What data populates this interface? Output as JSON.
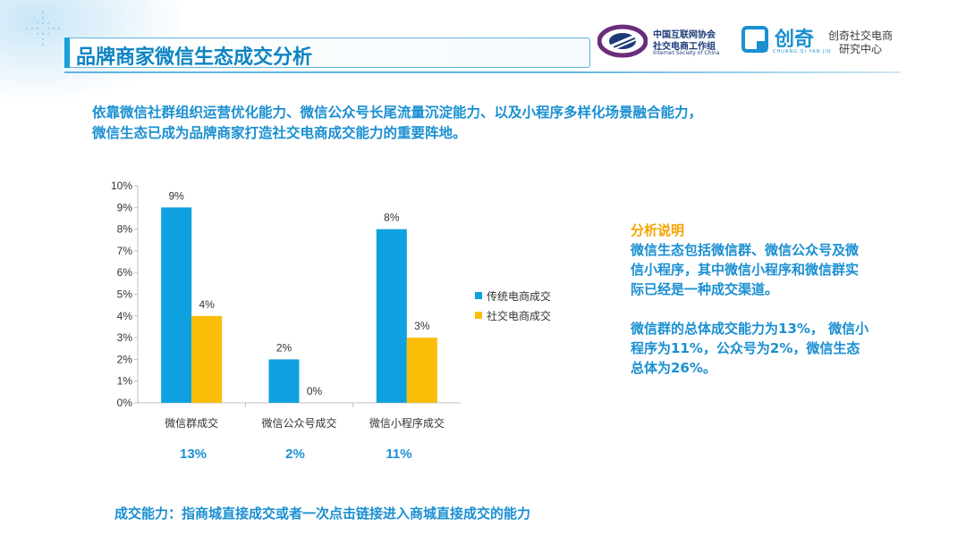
{
  "header": {
    "title": "品牌商家微信生态成交分析",
    "logo_isc": {
      "line1": "中国互联网协会",
      "line2": "社交电商工作组",
      "en": "Internet Society of China"
    },
    "logo_cq": {
      "brand": "创奇",
      "sub": "CHUANG QI YAN JIU",
      "line1": "创奇社交电商",
      "line2": "研究中心"
    }
  },
  "intro": {
    "line1": "依靠微信社群组织运营优化能力、微信公众号长尾流量沉淀能力、以及小程序多样化场景融合能力，",
    "line2": "微信生态已成为品牌商家打造社交电商成交能力的重要阵地。"
  },
  "chart_data": {
    "type": "bar",
    "categories": [
      "微信群成交",
      "微信公众号成交",
      "微信小程序成交"
    ],
    "series": [
      {
        "name": "传统电商成交",
        "values": [
          9,
          2,
          8
        ],
        "color": "#0fa0df"
      },
      {
        "name": "社交电商成交",
        "values": [
          4,
          0,
          3
        ],
        "color": "#fbbd08"
      }
    ],
    "data_labels": [
      [
        "9%",
        "2%",
        "8%"
      ],
      [
        "4%",
        "0%",
        "3%"
      ]
    ],
    "y_ticks": [
      "0%",
      "1%",
      "2%",
      "3%",
      "4%",
      "5%",
      "6%",
      "7%",
      "8%",
      "9%",
      "10%"
    ],
    "ylim": [
      0,
      10
    ],
    "unit": "%",
    "legend_position": "right",
    "grid": false,
    "totals": [
      "13%",
      "2%",
      "11%"
    ]
  },
  "analysis": {
    "heading": "分析说明",
    "line1": "微信生态包括微信群、微信公众号及微",
    "line2": "信小程序，其中微信小程序和微信群实",
    "line3": "际已经是一种成交渠道。",
    "line4": "微信群的总体成交能力为13%， 微信小",
    "line5": "程序为11%，公众号为2%，微信生态",
    "line6": "总体为26%。"
  },
  "footer": {
    "note": "成交能力：指商城直接成交或者一次点击链接进入商城直接成交的能力"
  },
  "colors": {
    "accent_blue": "#1a8fd1",
    "accent_orange": "#f5a400",
    "bar_blue": "#0fa0df",
    "bar_yellow": "#fbbd08"
  }
}
